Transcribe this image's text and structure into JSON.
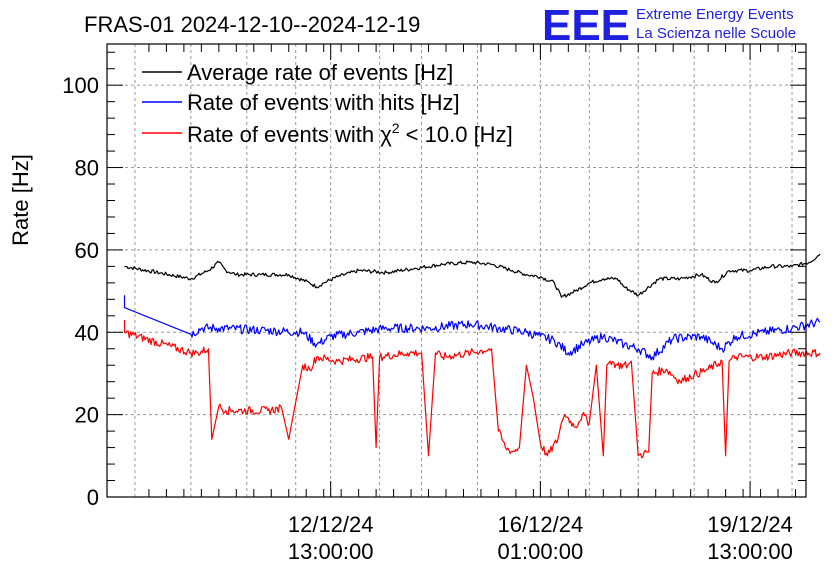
{
  "chart_data": {
    "type": "line",
    "title": "FRAS-01 2024-12-10--2024-12-19",
    "xlabel": "",
    "ylabel": "Rate [Hz]",
    "ylim": [
      0,
      110
    ],
    "xlim": [
      0,
      10
    ],
    "grid": true,
    "legend_position": "top-left",
    "yticks": [
      0,
      20,
      40,
      60,
      80,
      100
    ],
    "xticks": [
      {
        "x": 3.2,
        "date": "12/12/24",
        "time": "13:00:00"
      },
      {
        "x": 6.2,
        "date": "16/12/24",
        "time": "01:00:00"
      },
      {
        "x": 9.2,
        "date": "19/12/24",
        "time": "13:00:00"
      }
    ],
    "series": [
      {
        "name": "Average rate of events [Hz]",
        "color": "#000000",
        "x": [
          0.25,
          1.2,
          1.45,
          1.6,
          1.7,
          1.85,
          2.2,
          2.6,
          2.9,
          3.0,
          3.1,
          3.3,
          3.6,
          4.0,
          4.4,
          4.8,
          5.2,
          5.5,
          5.8,
          6.0,
          6.2,
          6.4,
          6.5,
          6.7,
          6.9,
          7.1,
          7.3,
          7.4,
          7.6,
          7.9,
          8.2,
          8.5,
          8.7,
          8.9,
          9.2,
          9.5,
          9.8,
          10.05,
          10.2
        ],
        "values": [
          56,
          53,
          55,
          57,
          55,
          54,
          54,
          54,
          52,
          51,
          52,
          53.5,
          55,
          54.5,
          55.5,
          56.5,
          57,
          56.5,
          55,
          54,
          53.5,
          52,
          48.5,
          50,
          52,
          53,
          53,
          51,
          49,
          53,
          53,
          54,
          52,
          55,
          55,
          56,
          56,
          57,
          59
        ]
      },
      {
        "name": "Rate of events with hits [Hz]",
        "color": "#0000ff",
        "x": [
          0.25,
          0.25,
          1.2,
          1.35,
          1.6,
          2.2,
          2.8,
          3.0,
          3.2,
          3.6,
          4.0,
          4.6,
          5.2,
          5.6,
          6.0,
          6.2,
          6.4,
          6.6,
          6.8,
          7.1,
          7.4,
          7.6,
          7.8,
          8.1,
          8.5,
          8.8,
          9.0,
          9.4,
          9.8,
          10.2
        ],
        "values": [
          49,
          46,
          39.5,
          41,
          41,
          40.5,
          40,
          37,
          39,
          40,
          41,
          41,
          42,
          41,
          40,
          39,
          38,
          35,
          37,
          39,
          37,
          36,
          34,
          38.5,
          39,
          36,
          39,
          40,
          41,
          42.5
        ]
      },
      {
        "name": "Rate of events with χ² < 10.0 [Hz]",
        "color": "#ff0000",
        "x": [
          0.25,
          0.25,
          1.2,
          1.3,
          1.45,
          1.5,
          1.6,
          1.7,
          1.8,
          2.3,
          2.5,
          2.6,
          2.8,
          2.9,
          3.0,
          3.3,
          3.8,
          3.85,
          3.9,
          4.3,
          4.5,
          4.6,
          4.7,
          4.8,
          5.2,
          5.5,
          5.6,
          5.7,
          5.8,
          5.9,
          6.0,
          6.1,
          6.2,
          6.3,
          6.45,
          6.5,
          6.55,
          6.7,
          6.8,
          6.9,
          7.0,
          7.1,
          7.15,
          7.2,
          7.3,
          7.45,
          7.5,
          7.6,
          7.75,
          7.8,
          8.0,
          8.2,
          8.3,
          8.6,
          8.8,
          8.85,
          8.9,
          9.0,
          9.4,
          9.8,
          10.2
        ],
        "values": [
          43,
          40,
          35,
          35,
          36,
          14,
          22,
          21,
          21,
          21,
          21.5,
          14,
          32,
          31,
          34,
          33,
          34,
          12,
          34,
          35,
          35,
          10,
          35,
          34,
          35,
          36,
          16,
          12,
          11,
          12,
          32,
          24,
          13,
          10,
          14,
          18,
          20,
          17,
          20,
          18,
          32,
          10,
          32,
          33,
          32,
          32,
          33,
          10,
          11,
          30,
          31,
          28,
          29,
          31,
          33,
          10,
          33,
          34,
          34,
          35,
          35
        ]
      }
    ]
  },
  "logo": {
    "mark": "EEE",
    "line1": "Extreme Energy Events",
    "line2": "La Scienza nelle Scuole"
  },
  "legend_entries": [
    {
      "text": "Average rate of events [Hz]"
    },
    {
      "text": "Rate of events with hits [Hz]"
    },
    {
      "pre": "Rate of events with χ",
      "sup": "2",
      "post": " < 10.0 [Hz]"
    }
  ]
}
